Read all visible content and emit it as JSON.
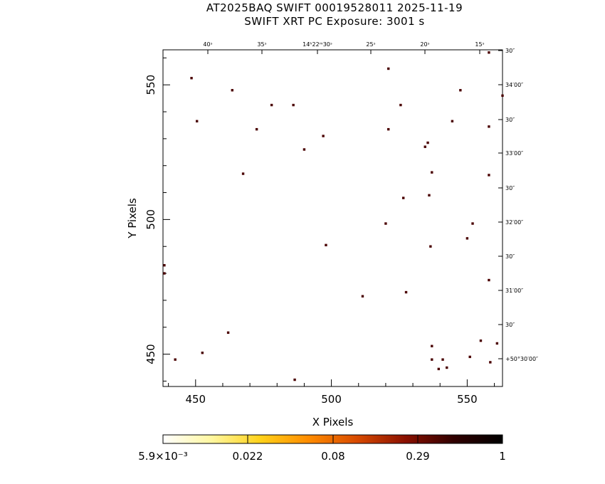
{
  "title_line1": "AT2025BAQ SWIFT 00019528011 2025-11-19",
  "title_line2": "SWIFT XRT PC Exposure:       3001 s",
  "chart_data": {
    "type": "scatter",
    "xlabel": "X Pixels",
    "ylabel": "Y Pixels",
    "xlim": [
      438,
      563
    ],
    "ylim": [
      438,
      563
    ],
    "x_ticks": [
      450,
      500,
      550
    ],
    "y_ticks": [
      450,
      500,
      550
    ],
    "ra_ticks": [
      "40ˢ",
      "35ˢ",
      "14ʰ22ᵐ30ˢ",
      "25ˢ",
      "20ˢ",
      "15ˢ"
    ],
    "dec_ticks": [
      "30″",
      "34′00″",
      "30″",
      "33′00″",
      "30″",
      "32′00″",
      "30″",
      "31′00″",
      "30″",
      "+50°30′00″"
    ],
    "colorbar_labels": [
      "5.9×10⁻³",
      "0.022",
      "0.08",
      "0.29",
      "1"
    ],
    "marker_color": "#4a0000",
    "colorbar_colors": [
      "#ffffff",
      "#fff7a0",
      "#ffd21a",
      "#ff8c00",
      "#d84a00",
      "#8a1000",
      "#300000",
      "#000000"
    ],
    "points": [
      [
        448.5,
        552.5
      ],
      [
        463.5,
        548
      ],
      [
        450.5,
        536.5
      ],
      [
        478,
        542.5
      ],
      [
        486,
        542.5
      ],
      [
        472.5,
        533.5
      ],
      [
        497,
        531
      ],
      [
        490,
        526
      ],
      [
        467.5,
        517
      ],
      [
        521,
        556
      ],
      [
        525.5,
        542.5
      ],
      [
        521,
        533.5
      ],
      [
        534.5,
        527
      ],
      [
        535.5,
        528.5
      ],
      [
        537,
        517.5
      ],
      [
        547.5,
        548
      ],
      [
        544.5,
        536.5
      ],
      [
        558,
        534.5
      ],
      [
        563,
        546
      ],
      [
        558,
        516.5
      ],
      [
        526.5,
        508
      ],
      [
        536,
        509
      ],
      [
        520,
        498.5
      ],
      [
        552,
        498.5
      ],
      [
        550,
        493
      ],
      [
        536.5,
        490
      ],
      [
        498,
        490.5
      ],
      [
        438.5,
        483
      ],
      [
        438.5,
        480
      ],
      [
        558,
        477.5
      ],
      [
        527.5,
        473
      ],
      [
        511.5,
        471.5
      ],
      [
        462,
        458
      ],
      [
        555,
        455
      ],
      [
        537,
        453
      ],
      [
        452.5,
        450.5
      ],
      [
        442.5,
        448
      ],
      [
        537,
        448
      ],
      [
        541,
        448
      ],
      [
        551,
        449
      ],
      [
        558.5,
        447
      ],
      [
        561,
        454
      ],
      [
        542.5,
        445
      ],
      [
        539.5,
        444.5
      ],
      [
        486.5,
        440.5
      ],
      [
        558,
        562
      ]
    ]
  }
}
